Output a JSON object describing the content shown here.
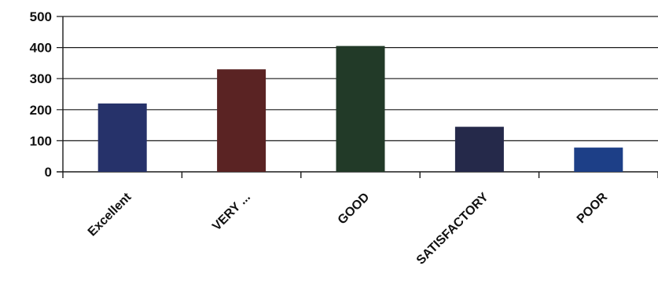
{
  "chart_data": {
    "type": "bar",
    "title": "",
    "xlabel": "",
    "ylabel": "",
    "categories": [
      "Excellent",
      "VERY ...",
      "GOOD",
      "SATISFACTORY",
      "POOR"
    ],
    "values": [
      220,
      330,
      405,
      145,
      78
    ],
    "ylim": [
      0,
      500
    ],
    "yticks": [
      0,
      100,
      200,
      300,
      400,
      500
    ],
    "grid": true,
    "legend": "none",
    "colors": [
      "#26326a",
      "#5a2323",
      "#223a28",
      "#25294a",
      "#1d3f87"
    ]
  }
}
